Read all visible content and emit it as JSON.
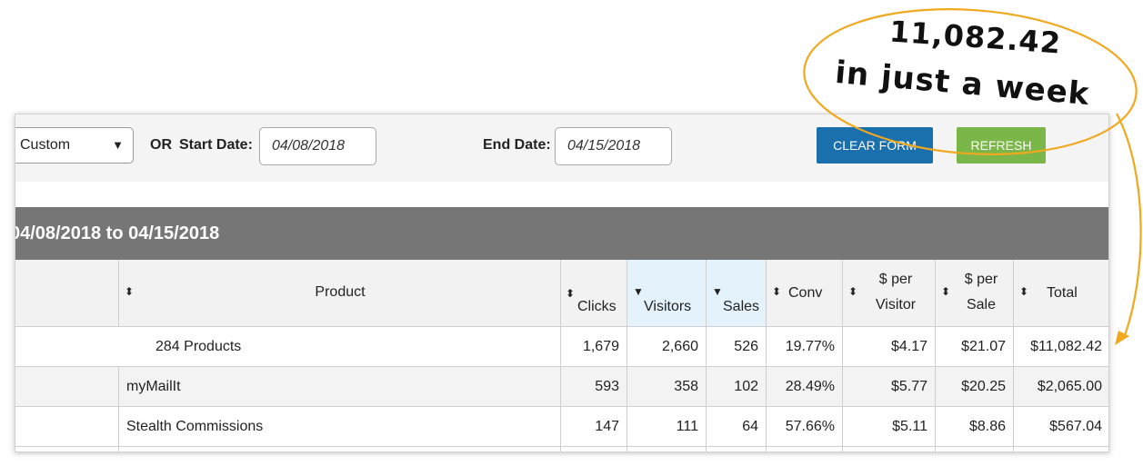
{
  "filters": {
    "period_value": "Custom",
    "or_label": "OR",
    "start_label": "Start Date:",
    "start_value": "04/08/2018",
    "end_label": "End Date:",
    "end_value": "04/15/2018",
    "clear_label": "CLEAR FORM",
    "refresh_label": "REFRESH"
  },
  "report": {
    "range_title": "04/08/2018 to 04/15/2018"
  },
  "table": {
    "columns": {
      "product": "Product",
      "clicks": "Clicks",
      "visitors": "Visitors",
      "sales": "Sales",
      "conv": "Conv",
      "per_visitor_1": "$ per",
      "per_visitor_2": "Visitor",
      "per_sale_1": "$ per",
      "per_sale_2": "Sale",
      "total": "Total"
    },
    "summary": {
      "product": "284 Products",
      "clicks": "1,679",
      "visitors": "2,660",
      "sales": "526",
      "conv": "19.77%",
      "per_visitor": "$4.17",
      "per_sale": "$21.07",
      "total": "$11,082.42"
    },
    "rows": [
      {
        "product": "myMailIt",
        "clicks": "593",
        "visitors": "358",
        "sales": "102",
        "conv": "28.49%",
        "per_visitor": "$5.77",
        "per_sale": "$20.25",
        "total": "$2,065.00"
      },
      {
        "product": "Stealth Commissions",
        "clicks": "147",
        "visitors": "111",
        "sales": "64",
        "conv": "57.66%",
        "per_visitor": "$5.11",
        "per_sale": "$8.86",
        "total": "$567.04"
      }
    ]
  },
  "annotation": {
    "line1": "11,082.42",
    "line2": "in just a week",
    "color": "#f0a81e"
  },
  "icons": {
    "sort": "sort-icon",
    "sort_desc": "sort-desc-icon",
    "dropdown": "caret-down-icon"
  }
}
